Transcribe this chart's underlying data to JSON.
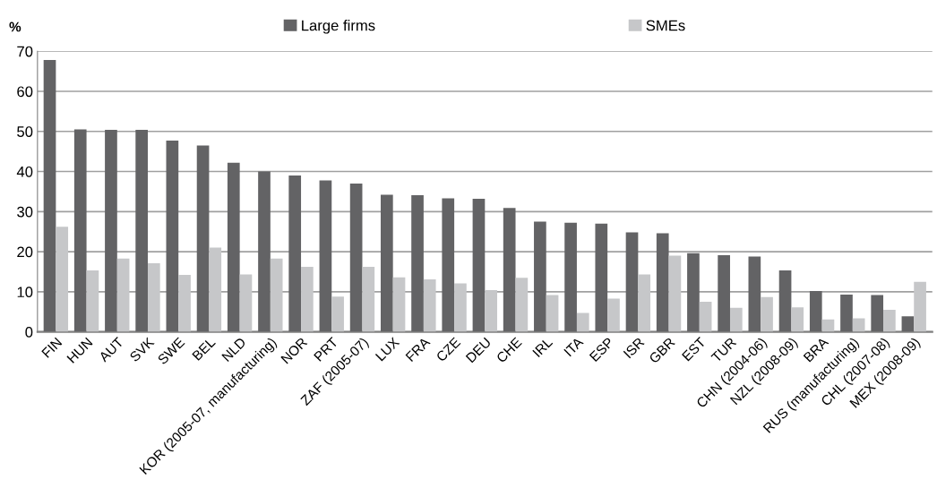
{
  "chart_data": {
    "type": "bar",
    "ylabel": "%",
    "categories": [
      "FIN",
      "HUN",
      "AUT",
      "SVK",
      "SWE",
      "BEL",
      "NLD",
      "KOR (2005-07, manufacturing)",
      "NOR",
      "PRT",
      "ZAF (2005-07)",
      "LUX",
      "FRA",
      "CZE",
      "DEU",
      "CHE",
      "IRL",
      "ITA",
      "ESP",
      "ISR",
      "GBR",
      "EST",
      "TUR",
      "CHN (2004-06)",
      "NZL (2008-09)",
      "BRA",
      "RUS (manufacturing)",
      "CHL (2007-08)",
      "MEX (2008-09)"
    ],
    "series": [
      {
        "name": "Large firms",
        "color": "#636365",
        "values": [
          67.8,
          50.5,
          50.4,
          50.4,
          47.7,
          46.5,
          42.2,
          40,
          39,
          37.8,
          37,
          34.2,
          34.1,
          33.3,
          33.2,
          30.9,
          27.5,
          27.2,
          27,
          24.8,
          24.6,
          19.6,
          19.1,
          18.8,
          15.3,
          10.2,
          9.3,
          9.2,
          3.9
        ]
      },
      {
        "name": "SMEs",
        "color": "#c6c7c9",
        "values": [
          26.2,
          15.3,
          18.3,
          17.1,
          14.2,
          21,
          14.3,
          18.3,
          16.2,
          8.8,
          16.2,
          13.6,
          13.1,
          12.1,
          10.4,
          13.5,
          9.2,
          4.7,
          8.3,
          14.3,
          19,
          7.5,
          6,
          8.7,
          6.1,
          3.1,
          3.4,
          5.5,
          12.5
        ]
      }
    ],
    "ylim": [
      0,
      70
    ],
    "yticks": [
      0,
      10,
      20,
      30,
      40,
      50,
      60,
      70
    ],
    "grid": "y",
    "legend": "top"
  }
}
